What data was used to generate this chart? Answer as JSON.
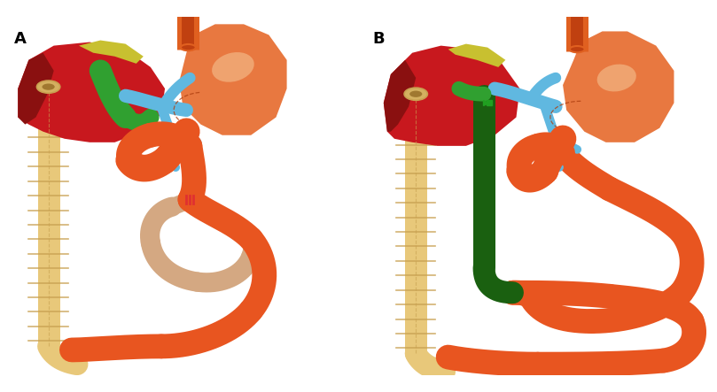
{
  "label_A": "A",
  "label_B": "B",
  "bg_color": "#ffffff",
  "label_fontsize": 13,
  "label_fontweight": "bold",
  "colors": {
    "liver": "#c8181e",
    "liver_dark": "#8a1010",
    "stomach": "#e87840",
    "stomach_light": "#f5b090",
    "duodenum_orange": "#e85520",
    "beige_intestine": "#d4a882",
    "beige_dark": "#b89060",
    "large_intestine": "#e8c87a",
    "large_intestine_edge": "#c8a050",
    "yellow_fat": "#c8c030",
    "green_bile": "#30a030",
    "blue_vessels": "#60b8e0",
    "dark_green_bypass": "#1a6010",
    "esophagus_outer": "#e06020",
    "esophagus_inner": "#c04010",
    "white": "#ffffff"
  }
}
